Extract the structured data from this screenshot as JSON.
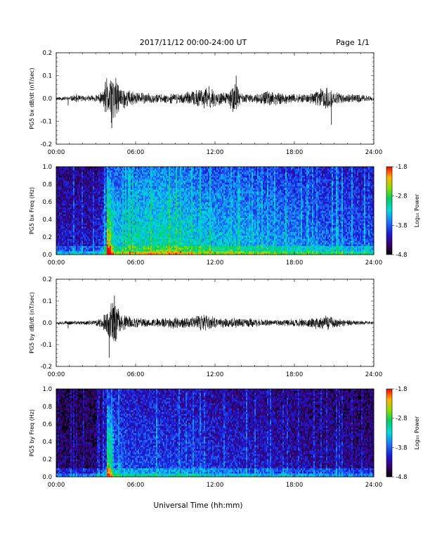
{
  "header": {
    "date_range": "2017/11/12  00:00-24:00 UT",
    "page": "Page 1/1"
  },
  "xlabel": "Universal Time (hh:mm)",
  "chart_data": [
    {
      "type": "line",
      "ylabel": "PG5 bx dB/dt (nT/sec)",
      "ylim": [
        -0.2,
        0.2
      ],
      "yticks": [
        "0.2",
        "0.1",
        "0.0",
        "-0.1",
        "-0.2"
      ],
      "xticks": [
        "00:00",
        "06:00",
        "12:00",
        "18:00",
        "24:00"
      ],
      "xlim_hours": [
        0,
        24
      ],
      "series": [
        {
          "envelope_hours": [
            0,
            1,
            1.5,
            2,
            2.8,
            3.5,
            3.8,
            4.0,
            4.2,
            4.5,
            4.8,
            5.2,
            6,
            7,
            8,
            9,
            10,
            11,
            11.5,
            12,
            12.5,
            13,
            13.5,
            14,
            14.5,
            15,
            16,
            17,
            18,
            19,
            20,
            20.5,
            21,
            22,
            23,
            24
          ],
          "envelope_values": [
            0.01,
            0.01,
            0.02,
            0.015,
            0.015,
            0.03,
            0.1,
            0.08,
            0.14,
            0.1,
            0.06,
            0.05,
            0.03,
            0.025,
            0.02,
            0.025,
            0.03,
            0.05,
            0.06,
            0.04,
            0.03,
            0.03,
            0.08,
            0.025,
            0.02,
            0.02,
            0.035,
            0.03,
            0.02,
            0.02,
            0.05,
            0.06,
            0.03,
            0.02,
            0.02,
            0.01
          ]
        }
      ],
      "spikes": [
        {
          "hour": 0.9,
          "value": -0.03
        },
        {
          "hour": 4.2,
          "value": -0.13
        },
        {
          "hour": 20.8,
          "value": -0.115
        },
        {
          "hour": 13.6,
          "value": 0.1
        }
      ]
    },
    {
      "type": "heatmap",
      "ylabel": "PG5 bx Freq (Hz)",
      "ylim": [
        0,
        1.0
      ],
      "yticks": [
        "1.0",
        "0.8",
        "0.6",
        "0.4",
        "0.2",
        "0.0"
      ],
      "xticks": [
        "00:00",
        "06:00",
        "12:00",
        "18:00",
        "24:00"
      ],
      "colorbar": {
        "label": "Log₁₀ Power",
        "range": [
          -4.8,
          -1.8
        ],
        "ticks": [
          "-1.8",
          "-2.8",
          "-3.8",
          "-4.8"
        ]
      },
      "activity_hours": [
        0,
        3,
        3.5,
        4,
        5,
        6,
        8,
        10,
        12,
        14,
        16,
        18,
        20,
        22,
        24
      ],
      "activity_levels": [
        0.22,
        0.22,
        0.3,
        0.52,
        0.52,
        0.55,
        0.6,
        0.55,
        0.5,
        0.48,
        0.44,
        0.42,
        0.38,
        0.35,
        0.32
      ]
    },
    {
      "type": "line",
      "ylabel": "PG5 by dB/dt (nT/sec)",
      "ylim": [
        -0.2,
        0.2
      ],
      "yticks": [
        "0.2",
        "0.1",
        "0.0",
        "-0.1",
        "-0.2"
      ],
      "xticks": [
        "00:00",
        "06:00",
        "12:00",
        "18:00",
        "24:00"
      ],
      "xlim_hours": [
        0,
        24
      ],
      "series": [
        {
          "envelope_hours": [
            0,
            1,
            2,
            3,
            3.5,
            3.8,
            4.0,
            4.2,
            4.5,
            4.8,
            5.2,
            6,
            7,
            8,
            9,
            10,
            11,
            11.5,
            12,
            12.5,
            13,
            14,
            15,
            16,
            17,
            18,
            19,
            20,
            20.5,
            21,
            22,
            23,
            24
          ],
          "envelope_values": [
            0.01,
            0.01,
            0.01,
            0.015,
            0.03,
            0.06,
            0.08,
            0.1,
            0.12,
            0.05,
            0.04,
            0.025,
            0.02,
            0.025,
            0.03,
            0.03,
            0.04,
            0.04,
            0.03,
            0.025,
            0.025,
            0.03,
            0.02,
            0.015,
            0.015,
            0.02,
            0.02,
            0.035,
            0.04,
            0.025,
            0.015,
            0.01,
            0.008
          ]
        }
      ],
      "spikes": [
        {
          "hour": 0.9,
          "value": -0.025
        },
        {
          "hour": 4.0,
          "value": -0.16
        },
        {
          "hour": 4.4,
          "value": 0.125
        }
      ]
    },
    {
      "type": "heatmap",
      "ylabel": "PG5 by Freq (Hz)",
      "ylim": [
        0,
        1.0
      ],
      "yticks": [
        "1.0",
        "0.8",
        "0.6",
        "0.4",
        "0.2",
        "0.0"
      ],
      "xticks": [
        "00:00",
        "06:00",
        "12:00",
        "18:00",
        "24:00"
      ],
      "colorbar": {
        "label": "Log₁₀ Power",
        "range": [
          -4.8,
          -1.8
        ],
        "ticks": [
          "-1.8",
          "-2.8",
          "-3.8",
          "-4.8"
        ]
      },
      "activity_hours": [
        0,
        3,
        3.5,
        4,
        5,
        6,
        8,
        10,
        12,
        14,
        16,
        18,
        20,
        22,
        24
      ],
      "activity_levels": [
        0.12,
        0.12,
        0.2,
        0.4,
        0.35,
        0.32,
        0.32,
        0.3,
        0.27,
        0.25,
        0.22,
        0.2,
        0.18,
        0.16,
        0.14
      ]
    }
  ]
}
